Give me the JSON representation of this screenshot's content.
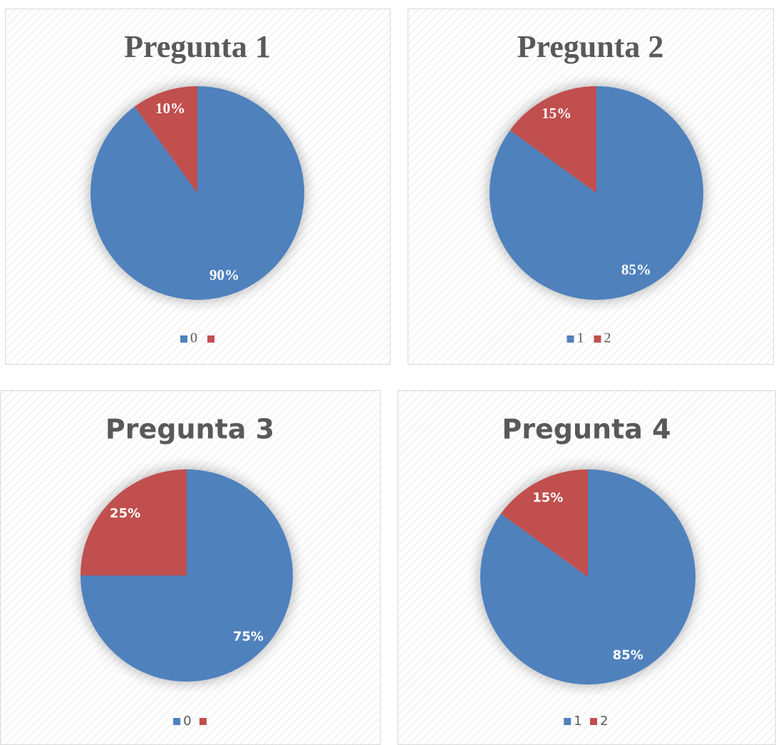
{
  "chart_data": [
    {
      "type": "pie",
      "title": "Pregunta 1",
      "categories": [
        "0",
        null
      ],
      "values": [
        90,
        10
      ],
      "value_labels": [
        "90%",
        "10%"
      ],
      "colors": [
        "#4f81bd",
        "#c0504d"
      ],
      "legend": "bottom"
    },
    {
      "type": "pie",
      "title": "Pregunta 2",
      "categories": [
        "1",
        "2"
      ],
      "values": [
        85,
        15
      ],
      "value_labels": [
        "85%",
        "15%"
      ],
      "colors": [
        "#4f81bd",
        "#c0504d"
      ],
      "legend": "bottom"
    },
    {
      "type": "pie",
      "title": "Pregunta 3",
      "categories": [
        "0",
        null
      ],
      "values": [
        75,
        25
      ],
      "value_labels": [
        "75%",
        "25%"
      ],
      "colors": [
        "#4f81bd",
        "#c0504d"
      ],
      "legend": "bottom"
    },
    {
      "type": "pie",
      "title": "Pregunta 4",
      "categories": [
        "1",
        "2"
      ],
      "values": [
        85,
        15
      ],
      "value_labels": [
        "85%",
        "15%"
      ],
      "colors": [
        "#4f81bd",
        "#c0504d"
      ],
      "legend": "bottom"
    }
  ]
}
